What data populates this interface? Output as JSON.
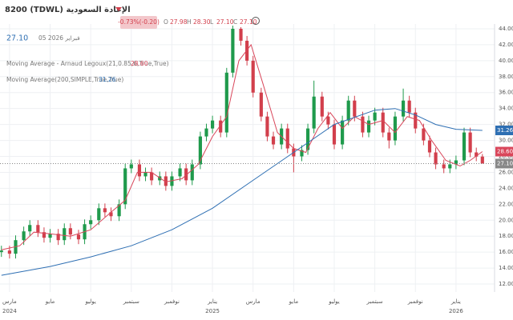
{
  "header": {
    "symbol": "8200 (TDWL) الإعادة السعودية",
    "change": "-0.73%(-0.20)",
    "ohlc": [
      {
        "key": "O",
        "value": "27.98"
      },
      {
        "key": "H",
        "value": "28.30"
      },
      {
        "key": "L",
        "value": "27.10"
      },
      {
        "key": "C",
        "value": "27.10"
      }
    ],
    "price": "27.10",
    "date": "05 2026 فبراير"
  },
  "legend": [
    {
      "text": "Moving Average - Arnaud Legoux(21,0.85,6,True,True)",
      "value": "28.60"
    },
    {
      "text": "Moving Average(200,SIMPLE,True,True)",
      "value": "31.26"
    }
  ],
  "chart_data": {
    "type": "candlestick",
    "up_color": "#1f9a4c",
    "down_color": "#d23f4c",
    "grid": true,
    "xlim": [
      -0.47,
      23.9
    ],
    "ylim": [
      11,
      44.6
    ],
    "yticks": [
      {
        "value": 12,
        "label": "12.00"
      },
      {
        "value": 14,
        "label": "14.00"
      },
      {
        "value": 16,
        "label": "16.00"
      },
      {
        "value": 18,
        "label": "18.00"
      },
      {
        "value": 20,
        "label": "20.00"
      },
      {
        "value": 22,
        "label": "22.00"
      },
      {
        "value": 24,
        "label": "24.00"
      },
      {
        "value": 26,
        "label": "26.00"
      },
      {
        "value": 28,
        "label": "28.00"
      },
      {
        "value": 30,
        "label": "30.00"
      },
      {
        "value": 32,
        "label": "32.00"
      },
      {
        "value": 34,
        "label": "34.00"
      },
      {
        "value": 36,
        "label": "36.00"
      },
      {
        "value": 38,
        "label": "38.00"
      },
      {
        "value": 40,
        "label": "40.00"
      },
      {
        "value": 42,
        "label": "42.00"
      },
      {
        "value": 44,
        "label": "44.00"
      }
    ],
    "xticks": [
      {
        "value": 0,
        "label": "مارس"
      },
      {
        "value": 2,
        "label": "مايو"
      },
      {
        "value": 4,
        "label": "يوليو"
      },
      {
        "value": 6,
        "label": "سبتمبر"
      },
      {
        "value": 8,
        "label": "نوفمبر"
      },
      {
        "value": 10,
        "label": "يناير"
      },
      {
        "value": 12,
        "label": "مارس"
      },
      {
        "value": 14,
        "label": "مايو"
      },
      {
        "value": 16,
        "label": "يوليو"
      },
      {
        "value": 18,
        "label": "سبتمبر"
      },
      {
        "value": 20,
        "label": "نوفمبر"
      },
      {
        "value": 22,
        "label": "يناير"
      }
    ],
    "x_year_labels": [
      {
        "value": 0,
        "label": "2024"
      },
      {
        "value": 10,
        "label": "2025"
      },
      {
        "value": 22,
        "label": "2026"
      }
    ],
    "x": [
      -0.4,
      0,
      0.3,
      0.7,
      1.0,
      1.4,
      1.7,
      2.0,
      2.4,
      2.7,
      3.0,
      3.4,
      3.7,
      4.0,
      4.4,
      4.7,
      5.0,
      5.4,
      5.7,
      6.0,
      6.4,
      6.7,
      7.0,
      7.4,
      7.7,
      8.0,
      8.4,
      8.7,
      9.0,
      9.4,
      9.7,
      10.0,
      10.4,
      10.7,
      11.0,
      11.4,
      11.7,
      12.0,
      12.4,
      12.7,
      13.0,
      13.4,
      13.7,
      14.0,
      14.4,
      14.7,
      15.0,
      15.4,
      15.7,
      16.0,
      16.4,
      16.7,
      17.0,
      17.4,
      17.7,
      18.0,
      18.4,
      18.7,
      19.0,
      19.4,
      19.7,
      20.0,
      20.4,
      20.7,
      21.0,
      21.4,
      21.7,
      22.0,
      22.4,
      22.7,
      23.0,
      23.3
    ],
    "open": [
      16.0,
      16.2,
      15.8,
      17.5,
      18.6,
      19.4,
      18.5,
      17.8,
      18.3,
      17.5,
      19.0,
      18.2,
      17.6,
      19.5,
      20.0,
      21.5,
      21.0,
      20.5,
      22.0,
      26.5,
      27.0,
      25.5,
      26.0,
      25.0,
      25.5,
      24.3,
      25.5,
      26.5,
      25.0,
      27.0,
      30.5,
      31.5,
      32.5,
      31.0,
      38.5,
      44.0,
      42.5,
      40.0,
      36.0,
      33.0,
      30.5,
      29.5,
      31.5,
      29.0,
      28.0,
      28.8,
      31.5,
      35.5,
      33.0,
      32.0,
      29.5,
      32.5,
      35.0,
      33.0,
      31.0,
      32.5,
      33.5,
      31.0,
      30.0,
      33.0,
      35.0,
      33.5,
      31.5,
      30.0,
      28.5,
      27.0,
      26.5,
      27.0,
      27.5,
      31.0,
      28.5,
      27.98
    ],
    "high": [
      16.8,
      16.8,
      18.1,
      19.2,
      20.0,
      20.0,
      19.1,
      18.9,
      18.9,
      19.6,
      19.6,
      18.8,
      20.1,
      20.6,
      22.1,
      22.1,
      21.6,
      22.6,
      27.1,
      27.6,
      27.6,
      26.6,
      26.6,
      26.1,
      26.1,
      26.1,
      27.1,
      27.1,
      27.6,
      31.1,
      32.1,
      33.1,
      33.1,
      39.1,
      44.4,
      44.2,
      43.1,
      40.6,
      36.6,
      33.6,
      31.1,
      32.1,
      32.1,
      29.6,
      29.4,
      32.1,
      37.5,
      36.1,
      33.6,
      32.6,
      33.1,
      35.6,
      35.6,
      33.6,
      33.1,
      34.1,
      34.1,
      31.6,
      33.6,
      36.5,
      35.6,
      34.1,
      32.1,
      30.6,
      29.1,
      27.6,
      27.6,
      28.1,
      31.6,
      31.6,
      29.1,
      28.3
    ],
    "low": [
      15.4,
      15.2,
      15.2,
      16.9,
      18.0,
      17.9,
      17.2,
      17.2,
      16.9,
      16.9,
      17.6,
      17.0,
      17.0,
      18.9,
      19.4,
      20.4,
      19.9,
      19.9,
      21.4,
      25.9,
      24.9,
      24.9,
      24.4,
      24.4,
      23.7,
      23.7,
      24.9,
      24.4,
      24.4,
      26.4,
      29.9,
      30.9,
      30.4,
      30.4,
      37.9,
      41.9,
      39.4,
      35.4,
      32.4,
      29.9,
      28.9,
      28.9,
      28.4,
      26.0,
      27.4,
      28.2,
      30.9,
      32.4,
      31.4,
      28.9,
      28.9,
      31.9,
      32.4,
      30.4,
      30.4,
      31.9,
      30.4,
      29.0,
      29.4,
      32.4,
      32.9,
      30.9,
      29.4,
      27.9,
      26.4,
      25.9,
      25.9,
      26.4,
      26.9,
      27.9,
      27.4,
      27.1
    ],
    "close": [
      16.2,
      15.8,
      17.5,
      18.6,
      19.4,
      18.5,
      17.8,
      18.3,
      17.5,
      19.0,
      18.2,
      17.6,
      19.5,
      20.0,
      21.5,
      21.0,
      20.5,
      22.0,
      26.5,
      27.0,
      25.5,
      26.0,
      25.0,
      25.5,
      24.3,
      25.5,
      26.5,
      25.0,
      27.0,
      30.5,
      31.5,
      32.5,
      31.0,
      38.5,
      44.0,
      42.5,
      40.0,
      36.0,
      33.0,
      30.5,
      29.5,
      31.5,
      29.0,
      28.0,
      28.8,
      31.5,
      35.5,
      33.0,
      32.0,
      29.5,
      32.5,
      35.0,
      33.0,
      31.0,
      32.5,
      33.5,
      31.0,
      30.0,
      33.0,
      35.0,
      33.5,
      31.5,
      30.0,
      28.5,
      27.0,
      26.5,
      27.0,
      27.5,
      31.0,
      28.5,
      27.98,
      27.1
    ],
    "series": [
      {
        "color": "#d9465a",
        "x": [
          -0.4,
          0.5,
          1.2,
          2,
          3,
          4,
          5,
          5.7,
          6.3,
          7,
          7.7,
          8.5,
          9.3,
          10,
          10.7,
          11.3,
          11.9,
          12.5,
          13.2,
          14,
          14.6,
          15.2,
          15.8,
          16.4,
          17,
          17.7,
          18.4,
          19,
          19.6,
          20.2,
          20.8,
          21.5,
          22.2,
          22.7,
          23.3
        ],
        "values": [
          16.3,
          16.8,
          18.5,
          18.3,
          18.0,
          18.8,
          21.0,
          22.5,
          26.0,
          26.0,
          24.8,
          25.2,
          27.0,
          30.5,
          33.0,
          40.0,
          42.0,
          37.0,
          31.0,
          29.0,
          28.5,
          31.5,
          33.5,
          31.5,
          33.0,
          32.0,
          32.5,
          31.0,
          33.0,
          32.5,
          30.0,
          27.5,
          26.8,
          27.5,
          28.6
        ]
      },
      {
        "color": "#2e6fb3",
        "x": [
          -0.4,
          2,
          4,
          6,
          8,
          10,
          12,
          14,
          16,
          18,
          19,
          20,
          21,
          22,
          23.3
        ],
        "values": [
          13.1,
          14.2,
          15.4,
          16.8,
          18.8,
          21.5,
          25.0,
          28.5,
          32.0,
          33.8,
          34.0,
          33.2,
          32.0,
          31.4,
          31.26
        ]
      }
    ]
  }
}
